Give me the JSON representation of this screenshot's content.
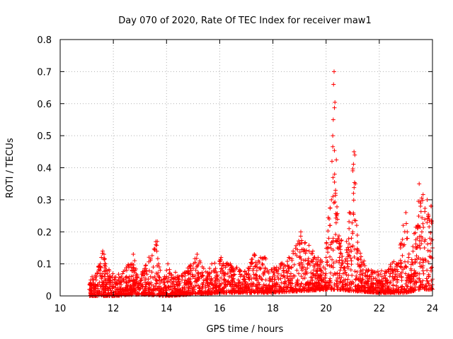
{
  "chart_data": {
    "type": "scatter",
    "title": "Day 070 of 2020, Rate Of TEC Index for receiver maw1",
    "xlabel": "GPS time / hours",
    "ylabel": "ROTI / TECUs",
    "xlim": [
      10,
      24
    ],
    "ylim": [
      0,
      0.8
    ],
    "xticks": [
      10,
      12,
      14,
      16,
      18,
      20,
      22,
      24
    ],
    "yticks": [
      0,
      0.1,
      0.2,
      0.3,
      0.4,
      0.5,
      0.6,
      0.7,
      0.8
    ],
    "xtick_labels": [
      "10",
      "12",
      "14",
      "16",
      "18",
      "20",
      "22",
      "24"
    ],
    "ytick_labels": [
      "0",
      "0.1",
      "0.2",
      "0.3",
      "0.4",
      "0.5",
      "0.6",
      "0.7",
      "0.8"
    ],
    "grid": true,
    "marker": "+",
    "marker_color": "#ff0000",
    "x_range_of_data": [
      11.1,
      24.0
    ],
    "points": [
      [
        11.1,
        0.02
      ],
      [
        11.15,
        0.05
      ],
      [
        11.2,
        0.06
      ],
      [
        11.25,
        0.04
      ],
      [
        11.3,
        0.03
      ],
      [
        11.35,
        0.05
      ],
      [
        11.4,
        0.07
      ],
      [
        11.45,
        0.09
      ],
      [
        11.5,
        0.08
      ],
      [
        11.55,
        0.12
      ],
      [
        11.6,
        0.14
      ],
      [
        11.65,
        0.13
      ],
      [
        11.7,
        0.1
      ],
      [
        11.75,
        0.08
      ],
      [
        11.8,
        0.06
      ],
      [
        11.85,
        0.05
      ],
      [
        11.9,
        0.04
      ],
      [
        11.95,
        0.03
      ],
      [
        12.0,
        0.03
      ],
      [
        12.1,
        0.04
      ],
      [
        12.2,
        0.05
      ],
      [
        12.3,
        0.06
      ],
      [
        12.4,
        0.05
      ],
      [
        12.5,
        0.04
      ],
      [
        12.6,
        0.06
      ],
      [
        12.7,
        0.1
      ],
      [
        12.75,
        0.13
      ],
      [
        12.8,
        0.11
      ],
      [
        12.9,
        0.06
      ],
      [
        13.0,
        0.04
      ],
      [
        13.1,
        0.03
      ],
      [
        13.2,
        0.05
      ],
      [
        13.3,
        0.04
      ],
      [
        13.4,
        0.06
      ],
      [
        13.5,
        0.09
      ],
      [
        13.6,
        0.16
      ],
      [
        13.65,
        0.17
      ],
      [
        13.7,
        0.1
      ],
      [
        13.8,
        0.05
      ],
      [
        13.9,
        0.04
      ],
      [
        14.0,
        0.08
      ],
      [
        14.05,
        0.1
      ],
      [
        14.1,
        0.07
      ],
      [
        14.2,
        0.04
      ],
      [
        14.3,
        0.03
      ],
      [
        14.5,
        0.04
      ],
      [
        14.7,
        0.05
      ],
      [
        14.9,
        0.04
      ],
      [
        15.0,
        0.06
      ],
      [
        15.1,
        0.08
      ],
      [
        15.15,
        0.13
      ],
      [
        15.2,
        0.07
      ],
      [
        15.4,
        0.05
      ],
      [
        15.6,
        0.07
      ],
      [
        15.7,
        0.1
      ],
      [
        15.8,
        0.08
      ],
      [
        15.9,
        0.06
      ],
      [
        16.0,
        0.1
      ],
      [
        16.05,
        0.12
      ],
      [
        16.1,
        0.08
      ],
      [
        16.3,
        0.07
      ],
      [
        16.4,
        0.1
      ],
      [
        16.5,
        0.08
      ],
      [
        16.7,
        0.05
      ],
      [
        16.9,
        0.06
      ],
      [
        17.0,
        0.07
      ],
      [
        17.2,
        0.1
      ],
      [
        17.3,
        0.13
      ],
      [
        17.4,
        0.09
      ],
      [
        17.5,
        0.06
      ],
      [
        17.6,
        0.1
      ],
      [
        17.7,
        0.12
      ],
      [
        17.8,
        0.08
      ],
      [
        17.9,
        0.05
      ],
      [
        18.0,
        0.06
      ],
      [
        18.2,
        0.07
      ],
      [
        18.3,
        0.1
      ],
      [
        18.4,
        0.08
      ],
      [
        18.6,
        0.12
      ],
      [
        18.7,
        0.09
      ],
      [
        18.9,
        0.08
      ],
      [
        19.0,
        0.12
      ],
      [
        19.05,
        0.2
      ],
      [
        19.1,
        0.08
      ],
      [
        19.3,
        0.1
      ],
      [
        19.5,
        0.14
      ],
      [
        19.6,
        0.1
      ],
      [
        19.8,
        0.08
      ],
      [
        19.9,
        0.09
      ],
      [
        20.0,
        0.12
      ],
      [
        20.05,
        0.15
      ],
      [
        20.1,
        0.18
      ],
      [
        20.15,
        0.22
      ],
      [
        20.2,
        0.3
      ],
      [
        20.22,
        0.42
      ],
      [
        20.25,
        0.5
      ],
      [
        20.27,
        0.55
      ],
      [
        20.28,
        0.66
      ],
      [
        20.3,
        0.7
      ],
      [
        20.32,
        0.38
      ],
      [
        20.35,
        0.32
      ],
      [
        20.4,
        0.25
      ],
      [
        20.45,
        0.18
      ],
      [
        20.5,
        0.12
      ],
      [
        20.6,
        0.1
      ],
      [
        20.7,
        0.08
      ],
      [
        20.8,
        0.1
      ],
      [
        20.9,
        0.14
      ],
      [
        21.0,
        0.2
      ],
      [
        21.03,
        0.32
      ],
      [
        21.05,
        0.45
      ],
      [
        21.08,
        0.44
      ],
      [
        21.1,
        0.35
      ],
      [
        21.15,
        0.22
      ],
      [
        21.2,
        0.14
      ],
      [
        21.3,
        0.08
      ],
      [
        21.5,
        0.06
      ],
      [
        21.7,
        0.05
      ],
      [
        21.9,
        0.04
      ],
      [
        22.0,
        0.05
      ],
      [
        22.1,
        0.06
      ],
      [
        22.2,
        0.07
      ],
      [
        22.3,
        0.05
      ],
      [
        22.4,
        0.04
      ],
      [
        22.5,
        0.06
      ],
      [
        22.6,
        0.08
      ],
      [
        22.7,
        0.1
      ],
      [
        22.8,
        0.15
      ],
      [
        22.9,
        0.22
      ],
      [
        23.0,
        0.26
      ],
      [
        23.05,
        0.2
      ],
      [
        23.1,
        0.12
      ],
      [
        23.2,
        0.08
      ],
      [
        23.3,
        0.06
      ],
      [
        23.4,
        0.15
      ],
      [
        23.5,
        0.35
      ],
      [
        23.55,
        0.28
      ],
      [
        23.6,
        0.2
      ],
      [
        23.7,
        0.15
      ],
      [
        23.8,
        0.3
      ],
      [
        23.85,
        0.25
      ],
      [
        23.9,
        0.18
      ],
      [
        23.95,
        0.28
      ],
      [
        24.0,
        0.15
      ]
    ],
    "envelope": [
      [
        11.1,
        0.04
      ],
      [
        11.3,
        0.06
      ],
      [
        11.6,
        0.14
      ],
      [
        11.9,
        0.07
      ],
      [
        12.3,
        0.07
      ],
      [
        12.7,
        0.12
      ],
      [
        13.0,
        0.06
      ],
      [
        13.6,
        0.17
      ],
      [
        13.9,
        0.06
      ],
      [
        14.05,
        0.1
      ],
      [
        14.5,
        0.06
      ],
      [
        15.15,
        0.13
      ],
      [
        15.5,
        0.08
      ],
      [
        16.05,
        0.12
      ],
      [
        16.4,
        0.1
      ],
      [
        16.9,
        0.08
      ],
      [
        17.3,
        0.13
      ],
      [
        17.7,
        0.12
      ],
      [
        18.0,
        0.09
      ],
      [
        18.6,
        0.12
      ],
      [
        19.05,
        0.2
      ],
      [
        19.5,
        0.14
      ],
      [
        19.9,
        0.12
      ],
      [
        20.15,
        0.3
      ],
      [
        20.3,
        0.7
      ],
      [
        20.45,
        0.25
      ],
      [
        20.7,
        0.12
      ],
      [
        21.05,
        0.45
      ],
      [
        21.2,
        0.15
      ],
      [
        21.6,
        0.08
      ],
      [
        22.2,
        0.08
      ],
      [
        22.7,
        0.12
      ],
      [
        23.0,
        0.26
      ],
      [
        23.2,
        0.12
      ],
      [
        23.5,
        0.35
      ],
      [
        23.8,
        0.3
      ],
      [
        24.0,
        0.3
      ]
    ],
    "floor": [
      [
        11.1,
        0.0
      ],
      [
        12.0,
        0.0
      ],
      [
        13.0,
        0.005
      ],
      [
        14.0,
        0.0
      ],
      [
        15.0,
        0.005
      ],
      [
        16.0,
        0.01
      ],
      [
        17.0,
        0.01
      ],
      [
        18.0,
        0.01
      ],
      [
        19.0,
        0.015
      ],
      [
        20.0,
        0.02
      ],
      [
        20.5,
        0.02
      ],
      [
        21.0,
        0.015
      ],
      [
        22.0,
        0.01
      ],
      [
        23.0,
        0.01
      ],
      [
        23.5,
        0.02
      ],
      [
        24.0,
        0.02
      ]
    ]
  }
}
